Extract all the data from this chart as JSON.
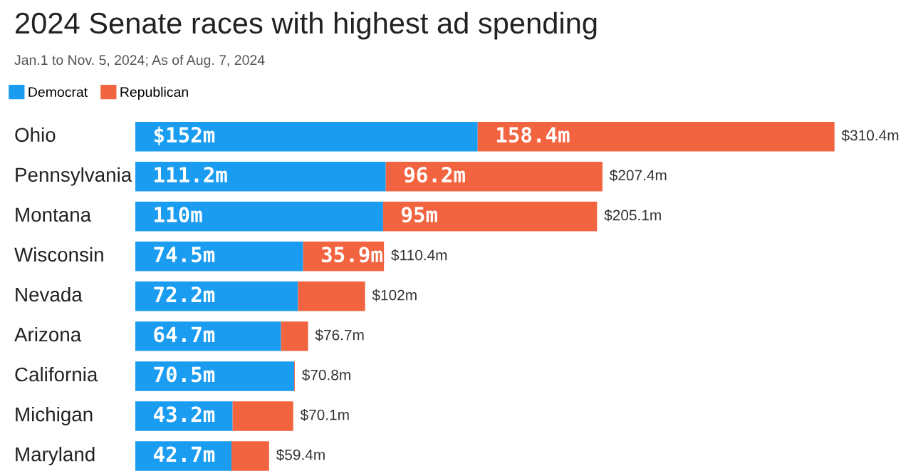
{
  "chart_data": {
    "type": "bar",
    "orientation": "horizontal",
    "stacked": true,
    "title": "2024 Senate races with highest ad spending",
    "subtitle": "Jan.1 to Nov. 5, 2024; As of Aug. 7, 2024",
    "categories": [
      "Ohio",
      "Pennsylvania",
      "Montana",
      "Wisconsin",
      "Nevada",
      "Arizona",
      "California",
      "Michigan",
      "Maryland"
    ],
    "series": [
      {
        "name": "Democrat",
        "color": "#1a9cf0",
        "values": [
          152,
          111.2,
          110,
          74.5,
          72.2,
          64.7,
          70.5,
          43.2,
          42.7
        ],
        "value_labels": [
          "$152m",
          "111.2m",
          "110m",
          "74.5m",
          "72.2m",
          "64.7m",
          "70.5m",
          "43.2m",
          "42.7m"
        ]
      },
      {
        "name": "Republican",
        "color": "#f26440",
        "values": [
          158.4,
          96.2,
          95,
          35.9,
          29.8,
          12.0,
          0.3,
          26.9,
          16.7
        ],
        "value_labels": [
          "158.4m",
          "96.2m",
          "95m",
          "35.9m",
          null,
          null,
          null,
          null,
          null
        ]
      }
    ],
    "totals": [
      "$310.4m",
      "$207.4m",
      "$205.1m",
      "$110.4m",
      "$102m",
      "$76.7m",
      "$70.8m",
      "$70.1m",
      "$59.4m"
    ],
    "legend": "top left"
  }
}
